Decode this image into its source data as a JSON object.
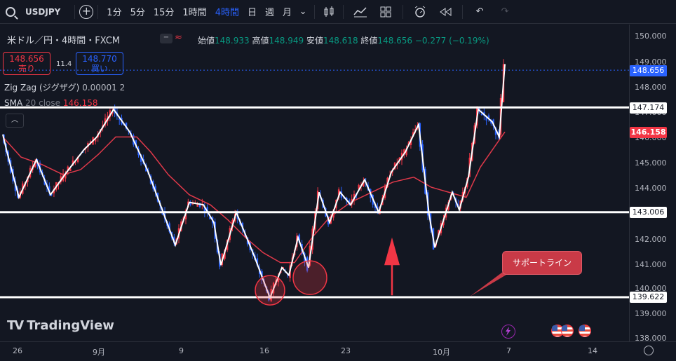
{
  "toolbar": {
    "symbol": "USDJPY",
    "timeframes": [
      "1分",
      "5分",
      "15分",
      "1時間",
      "4時間",
      "日",
      "週",
      "月"
    ],
    "active_timeframe": "4時間"
  },
  "legend": {
    "title": "米ドル／円・4時間・FXCM",
    "open_label": "始値",
    "open": "148.933",
    "high_label": "高値",
    "high": "148.949",
    "low_label": "安値",
    "low": "148.618",
    "close_label": "終値",
    "close": "148.656",
    "change": "−0.277 (−0.19%)",
    "sell_price": "148.656",
    "sell_label": "売り",
    "spread": "11.4",
    "buy_price": "148.770",
    "buy_label": "買い",
    "indicator1_name": "Zig Zag (ジグザグ)",
    "indicator1_params": "0.00001 2",
    "indicator2_name": "SMA",
    "indicator2_params": "20 close",
    "indicator2_value": "146.158"
  },
  "price_axis": {
    "ticks": [
      "150.000",
      "149.000",
      "148.000",
      "147.000",
      "146.000",
      "145.000",
      "144.000",
      "143.000",
      "142.000",
      "141.000",
      "140.000",
      "139.000",
      "138.000"
    ],
    "labels": {
      "last": "148.656",
      "resistance": "147.174",
      "sma": "146.158",
      "mid": "143.006",
      "support": "139.622"
    }
  },
  "time_axis": {
    "ticks": [
      "26",
      "9月",
      "9",
      "16",
      "23",
      "10月",
      "7",
      "14"
    ]
  },
  "annotation": {
    "callout": "サポートライン"
  },
  "branding": "TradingView",
  "colors": {
    "bull": "#089981",
    "bear": "#2962ff",
    "sma": "#f23645",
    "zigzag": "#ffffff",
    "accent": "#2962ff"
  }
}
